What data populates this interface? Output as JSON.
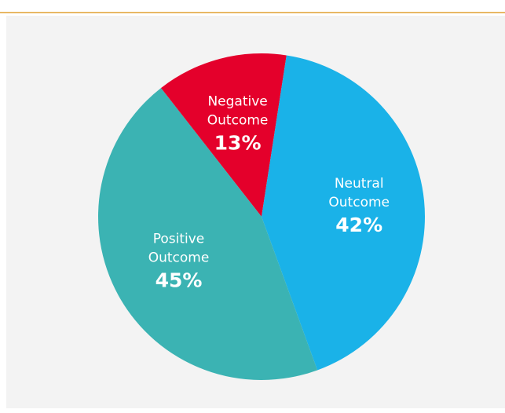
{
  "chart_data": {
    "type": "pie",
    "categories": [
      "Negative Outcome",
      "Neutral Outcome",
      "Positive Outcome"
    ],
    "values": [
      13,
      42,
      45
    ],
    "value_labels": [
      "13%",
      "42%",
      "45%"
    ],
    "colors": [
      "#e4002b",
      "#1ab2e8",
      "#3bb3b3"
    ]
  }
}
